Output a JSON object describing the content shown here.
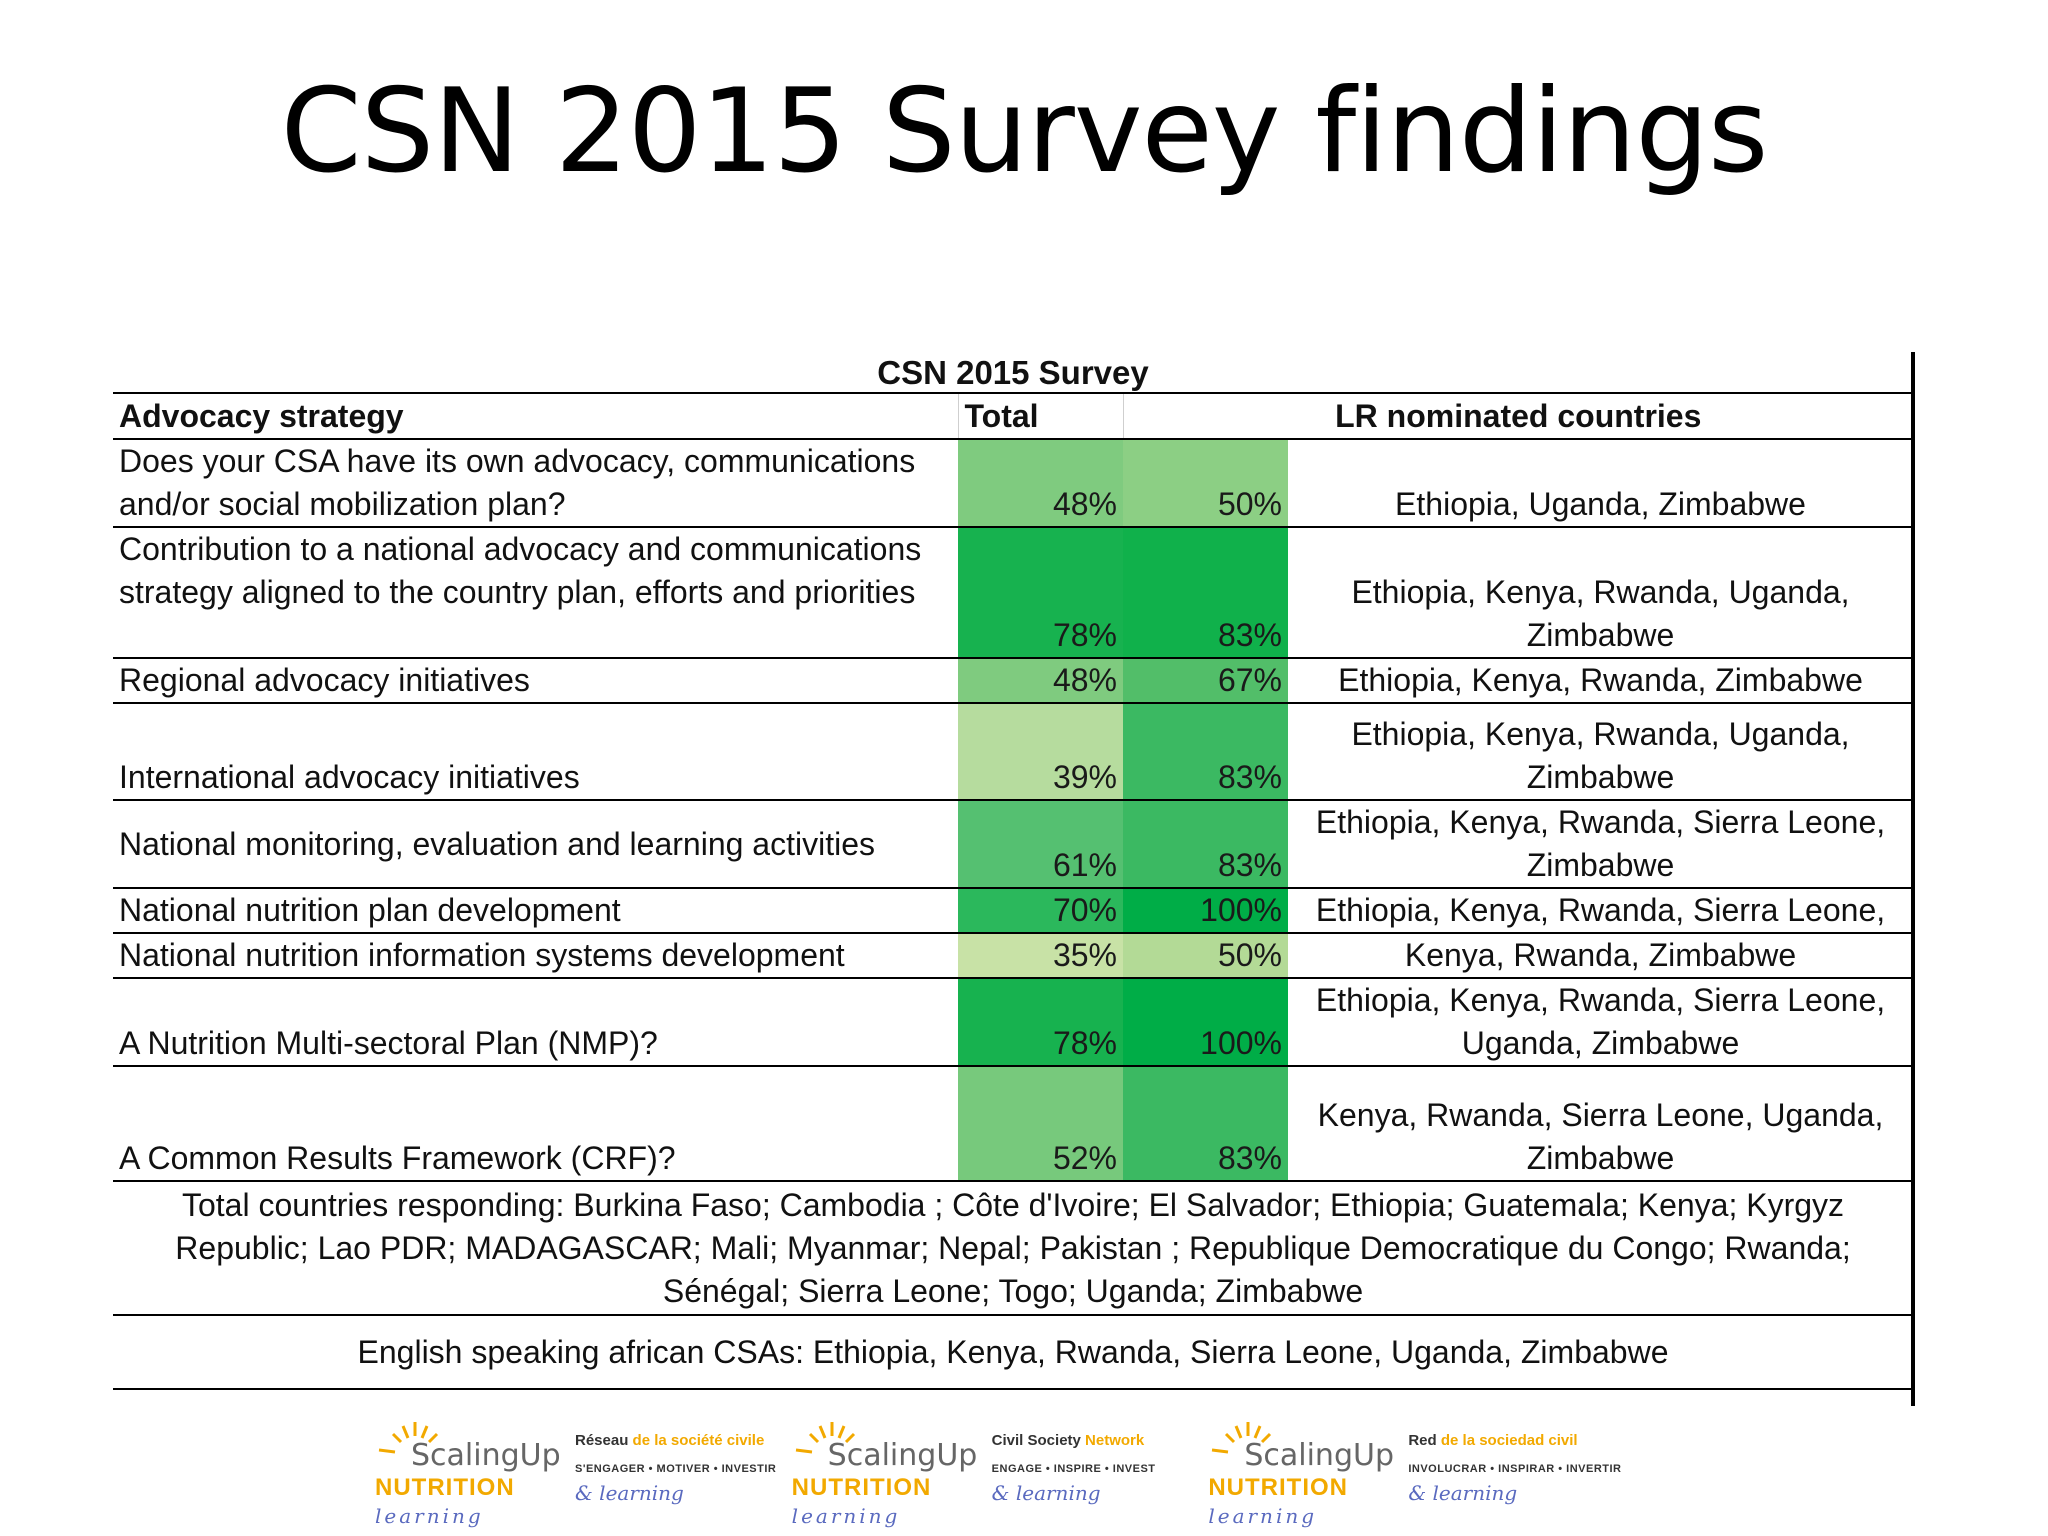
{
  "slide": {
    "title": "CSN 2015 Survey findings"
  },
  "table": {
    "caption": "CSN 2015 Survey",
    "headers": {
      "strategy": "Advocacy strategy",
      "total": "Total",
      "countries": "LR nominated countries"
    },
    "rows": [
      {
        "strategy": "Does your CSA have its own advocacy, communications and/or social mobilization plan?",
        "total": "48%",
        "lr": "50%",
        "countries": "Ethiopia, Uganda, Zimbabwe",
        "total_color": "#7fcb7f",
        "lr_color": "#8ccf84"
      },
      {
        "strategy": "Contribution to a national advocacy and communications strategy aligned to the country plan, efforts and priorities",
        "total": "78%",
        "lr": "83%",
        "countries": "Ethiopia, Kenya, Rwanda, Uganda, Zimbabwe",
        "total_color": "#17b24f",
        "lr_color": "#10b14b"
      },
      {
        "strategy": "Regional advocacy initiatives",
        "total": "48%",
        "lr": "67%",
        "countries": "Ethiopia, Kenya, Rwanda, Zimbabwe",
        "total_color": "#7fcb7f",
        "lr_color": "#52be69"
      },
      {
        "strategy": "International advocacy initiatives",
        "total": "39%",
        "lr": "83%",
        "countries": "Ethiopia, Kenya, Rwanda, Uganda, Zimbabwe",
        "total_color": "#b6dc9e",
        "lr_color": "#3bb962"
      },
      {
        "strategy": "National monitoring, evaluation and learning activities",
        "total": "61%",
        "lr": "83%",
        "countries": "Ethiopia, Kenya, Rwanda, Sierra Leone, Zimbabwe",
        "total_color": "#55c071",
        "lr_color": "#3bb962"
      },
      {
        "strategy": "National nutrition plan development",
        "total": "70%",
        "lr": "100%",
        "countries": "Ethiopia, Kenya, Rwanda, Sierra Leone,",
        "total_color": "#2bb85c",
        "lr_color": "#00ad47"
      },
      {
        "strategy": "National nutrition information systems development",
        "total": "35%",
        "lr": "50%",
        "countries": "Kenya, Rwanda, Zimbabwe",
        "total_color": "#c8e2a6",
        "lr_color": "#b3da96"
      },
      {
        "strategy": "A Nutrition Multi-sectoral Plan (NMP)?",
        "total": "78%",
        "lr": "100%",
        "countries": "Ethiopia, Kenya, Rwanda, Sierra Leone, Uganda, Zimbabwe",
        "total_color": "#17b24f",
        "lr_color": "#00ad47"
      },
      {
        "strategy": "A Common Results Framework (CRF)?",
        "total": "52%",
        "lr": "83%",
        "countries": "Kenya, Rwanda, Sierra Leone, Uganda, Zimbabwe",
        "total_color": "#77c97c",
        "lr_color": "#3bb962"
      }
    ],
    "footer_total": "Total countries responding: Burkina Faso; Cambodia ; Côte d'Ivoire; El Salvador; Ethiopia; Guatemala; Kenya; Kyrgyz Republic; Lao PDR; MADAGASCAR; Mali; Myanmar; Nepal; Pakistan ; Republique Democratique du Congo; Rwanda; Sénégal; Sierra Leone; Togo; Uganda; Zimbabwe",
    "footer_english": "English speaking african CSAs: Ethiopia, Kenya, Rwanda, Sierra Leone, Uganda, Zimbabwe"
  },
  "logos": {
    "scaling": "ScalingUp",
    "nutrition": "NUTRITION",
    "learning": "learning",
    "amp": "&",
    "networks": [
      {
        "name_bold": "Réseau",
        "name_accent": "de la société civile",
        "tag": "S'ENGAGER • MOTIVER • INVESTIR"
      },
      {
        "name_bold": "Civil Society",
        "name_accent": "Network",
        "tag": "ENGAGE • INSPIRE • INVEST"
      },
      {
        "name_bold": "Red",
        "name_accent": "de la sociedad civil",
        "tag": "INVOLUCRAR • INSPIRAR • INVERTIR"
      }
    ]
  }
}
